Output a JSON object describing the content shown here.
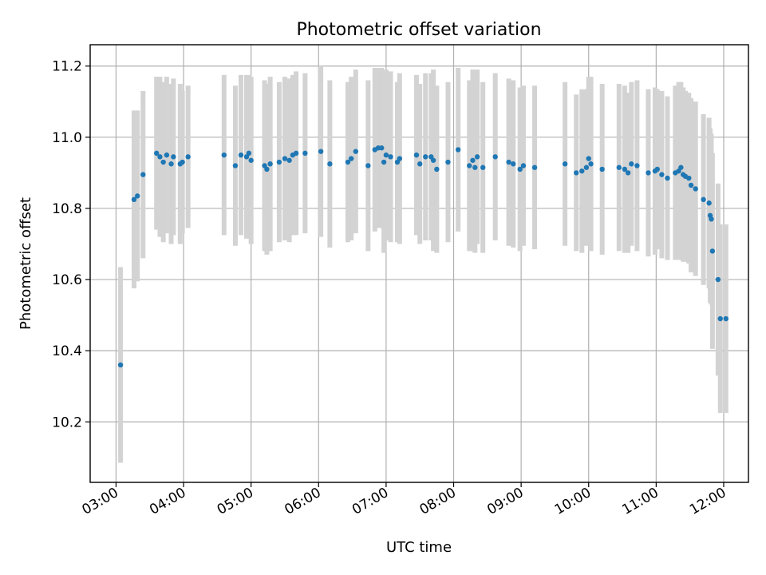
{
  "chart_data": {
    "type": "scatter",
    "title": "Photometric offset variation",
    "xlabel": "UTC time",
    "ylabel": "Photometric offset",
    "x_unit": "UTC time of day (HH:MM)",
    "xlim": [
      "02:37",
      "12:22"
    ],
    "ylim": [
      10.03,
      11.26
    ],
    "xticks": [
      "03:00",
      "04:00",
      "05:00",
      "06:00",
      "07:00",
      "08:00",
      "09:00",
      "10:00",
      "11:00",
      "12:00"
    ],
    "yticks": [
      "10.2",
      "10.4",
      "10.6",
      "10.8",
      "11.0",
      "11.2"
    ],
    "grid": true,
    "point_color": "#1f77b4",
    "errorbar_color": "#d3d3d3",
    "series": [
      {
        "x": [
          "03:04",
          "03:16",
          "03:19",
          "03:24",
          "03:36",
          "03:39",
          "03:42",
          "03:45",
          "03:49",
          "03:51",
          "03:57",
          "03:59",
          "04:04",
          "04:36",
          "04:46",
          "04:51",
          "04:56",
          "04:58",
          "05:00",
          "05:12",
          "05:14",
          "05:17",
          "05:25",
          "05:30",
          "05:34",
          "05:37",
          "05:40",
          "05:48",
          "06:02",
          "06:10",
          "06:26",
          "06:29",
          "06:33",
          "06:44",
          "06:50",
          "06:53",
          "06:56",
          "06:58",
          "07:00",
          "07:04",
          "07:10",
          "07:12",
          "07:27",
          "07:30",
          "07:35",
          "07:40",
          "07:42",
          "07:45",
          "07:55",
          "08:04",
          "08:14",
          "08:17",
          "08:19",
          "08:21",
          "08:26",
          "08:37",
          "08:49",
          "08:53",
          "08:59",
          "09:02",
          "09:12",
          "09:39",
          "09:49",
          "09:54",
          "09:58",
          "10:00",
          "10:02",
          "10:12",
          "10:27",
          "10:32",
          "10:35",
          "10:38",
          "10:43",
          "10:53",
          "10:59",
          "11:01",
          "11:05",
          "11:10",
          "11:17",
          "11:20",
          "11:22",
          "11:24",
          "11:26",
          "11:29",
          "11:31",
          "11:35",
          "11:42",
          "11:47",
          "11:48",
          "11:49",
          "11:50",
          "11:55",
          "11:57",
          "12:02"
        ],
        "y": [
          10.36,
          10.825,
          10.835,
          10.895,
          10.955,
          10.945,
          10.93,
          10.95,
          10.925,
          10.945,
          10.925,
          10.93,
          10.945,
          10.95,
          10.92,
          10.95,
          10.945,
          10.955,
          10.935,
          10.92,
          10.91,
          10.925,
          10.93,
          10.94,
          10.935,
          10.95,
          10.955,
          10.955,
          10.96,
          10.925,
          10.93,
          10.94,
          10.96,
          10.92,
          10.965,
          10.97,
          10.97,
          10.93,
          10.95,
          10.945,
          10.93,
          10.94,
          10.95,
          10.925,
          10.945,
          10.945,
          10.935,
          10.91,
          10.93,
          10.965,
          10.92,
          10.935,
          10.915,
          10.945,
          10.915,
          10.945,
          10.93,
          10.925,
          10.91,
          10.92,
          10.915,
          10.925,
          10.9,
          10.905,
          10.915,
          10.94,
          10.925,
          10.91,
          10.915,
          10.91,
          10.9,
          10.925,
          10.92,
          10.9,
          10.905,
          10.91,
          10.895,
          10.885,
          10.9,
          10.905,
          10.915,
          10.895,
          10.89,
          10.885,
          10.865,
          10.855,
          10.825,
          10.815,
          10.78,
          10.77,
          10.68,
          10.6,
          10.49,
          10.49
        ],
        "yerr": [
          0.275,
          0.25,
          0.24,
          0.235,
          0.215,
          0.225,
          0.225,
          0.22,
          0.225,
          0.22,
          0.225,
          0.2,
          0.2,
          0.225,
          0.225,
          0.225,
          0.23,
          0.22,
          0.235,
          0.24,
          0.24,
          0.245,
          0.225,
          0.23,
          0.23,
          0.225,
          0.23,
          0.225,
          0.24,
          0.235,
          0.225,
          0.23,
          0.23,
          0.24,
          0.23,
          0.225,
          0.225,
          0.255,
          0.24,
          0.24,
          0.225,
          0.24,
          0.225,
          0.225,
          0.235,
          0.235,
          0.255,
          0.235,
          0.225,
          0.23,
          0.24,
          0.255,
          0.24,
          0.245,
          0.24,
          0.235,
          0.235,
          0.235,
          0.23,
          0.225,
          0.23,
          0.23,
          0.22,
          0.23,
          0.22,
          0.23,
          0.245,
          0.24,
          0.235,
          0.235,
          0.225,
          0.23,
          0.24,
          0.235,
          0.235,
          0.225,
          0.235,
          0.23,
          0.245,
          0.25,
          0.24,
          0.245,
          0.24,
          0.24,
          0.245,
          0.245,
          0.24,
          0.24,
          0.245,
          0.24,
          0.275,
          0.27,
          0.265,
          0.265
        ]
      }
    ]
  }
}
